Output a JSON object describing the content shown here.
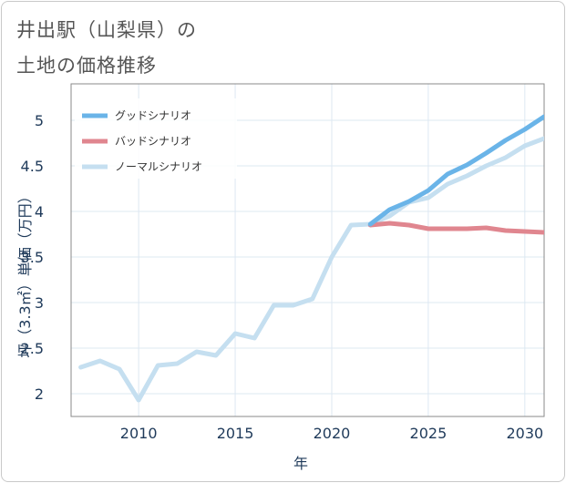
{
  "title": {
    "line1": "井出駅（山梨県）の",
    "line2": "土地の価格推移"
  },
  "chart_data": {
    "type": "line",
    "xlabel": "年",
    "ylabel": "坪（3.3㎡）単価（万円）",
    "xlim": [
      2006.5,
      2031
    ],
    "ylim": [
      1.75,
      5.4
    ],
    "x_ticks": [
      2010,
      2015,
      2020,
      2025,
      2030
    ],
    "y_ticks": [
      2,
      2.5,
      3,
      3.5,
      4,
      4.5,
      5
    ],
    "grid": true,
    "legend_position": "top-left",
    "series": [
      {
        "name": "ノーマルシナリオ",
        "color": "#c5dff0",
        "points": [
          [
            2007,
            2.29
          ],
          [
            2008,
            2.36
          ],
          [
            2009,
            2.27
          ],
          [
            2010,
            1.93
          ],
          [
            2011,
            2.31
          ],
          [
            2012,
            2.33
          ],
          [
            2013,
            2.46
          ],
          [
            2014,
            2.42
          ],
          [
            2015,
            2.66
          ],
          [
            2016,
            2.61
          ],
          [
            2017,
            2.97
          ],
          [
            2018,
            2.97
          ],
          [
            2019,
            3.04
          ],
          [
            2020,
            3.5
          ],
          [
            2021,
            3.85
          ],
          [
            2022,
            3.86
          ],
          [
            2023,
            3.95
          ],
          [
            2024,
            4.1
          ],
          [
            2025,
            4.15
          ],
          [
            2026,
            4.3
          ],
          [
            2027,
            4.39
          ],
          [
            2028,
            4.5
          ],
          [
            2029,
            4.59
          ],
          [
            2030,
            4.72
          ],
          [
            2031,
            4.8
          ]
        ]
      },
      {
        "name": "バッドシナリオ",
        "color": "#e0868f",
        "points": [
          [
            2022,
            3.85
          ],
          [
            2023,
            3.87
          ],
          [
            2024,
            3.85
          ],
          [
            2025,
            3.81
          ],
          [
            2026,
            3.81
          ],
          [
            2027,
            3.81
          ],
          [
            2028,
            3.82
          ],
          [
            2029,
            3.79
          ],
          [
            2030,
            3.78
          ],
          [
            2031,
            3.77
          ]
        ]
      },
      {
        "name": "グッドシナリオ",
        "color": "#6ab4e8",
        "points": [
          [
            2022,
            3.86
          ],
          [
            2023,
            4.02
          ],
          [
            2024,
            4.11
          ],
          [
            2025,
            4.23
          ],
          [
            2026,
            4.41
          ],
          [
            2027,
            4.51
          ],
          [
            2028,
            4.64
          ],
          [
            2029,
            4.78
          ],
          [
            2030,
            4.9
          ],
          [
            2031,
            5.04
          ]
        ]
      }
    ],
    "legend": [
      "グッドシナリオ",
      "バッドシナリオ",
      "ノーマルシナリオ"
    ]
  }
}
